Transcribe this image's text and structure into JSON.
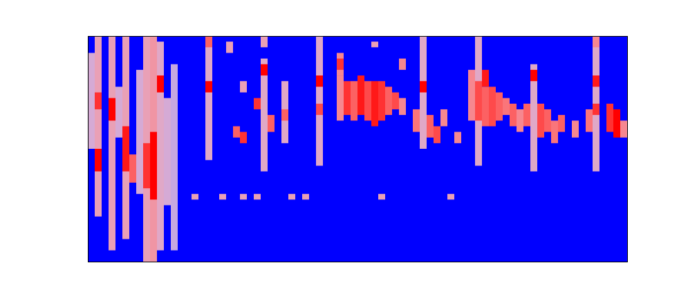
{
  "chart_data": {
    "type": "heatmap",
    "xlim": [
      0,
      78
    ],
    "ylim": [
      0,
      40
    ],
    "zlim": [
      0,
      1
    ],
    "tick_labels": false,
    "grid": false,
    "cells": [
      [
        1,
        8,
        39,
        0.6
      ],
      [
        0,
        20,
        36,
        0.5
      ],
      [
        1,
        16,
        19,
        1
      ],
      [
        1,
        27,
        29,
        0.9
      ],
      [
        3,
        2,
        39,
        0.6
      ],
      [
        3,
        25,
        28,
        1
      ],
      [
        5,
        4,
        39,
        0.6
      ],
      [
        5,
        16,
        23,
        0.95
      ],
      [
        4,
        22,
        30,
        0.5
      ],
      [
        7,
        12,
        33,
        0.5
      ],
      [
        6,
        14,
        18,
        0.8
      ],
      [
        8,
        0,
        39,
        0.6
      ],
      [
        9,
        0,
        39,
        0.65
      ],
      [
        9,
        11,
        22,
        1
      ],
      [
        8,
        13,
        20,
        0.9
      ],
      [
        10,
        2,
        38,
        0.55
      ],
      [
        10,
        30,
        32,
        1
      ],
      [
        12,
        2,
        34,
        0.45
      ],
      [
        11,
        10,
        28,
        0.5
      ],
      [
        17,
        18,
        39,
        0.55
      ],
      [
        17,
        30,
        31,
        1
      ],
      [
        17,
        38,
        39,
        0.8
      ],
      [
        15,
        11,
        11,
        0.6
      ],
      [
        19,
        11,
        11,
        0.6
      ],
      [
        22,
        11,
        11,
        0.6
      ],
      [
        24,
        11,
        11,
        0.6
      ],
      [
        29,
        11,
        11,
        0.6
      ],
      [
        31,
        11,
        11,
        0.6
      ],
      [
        42,
        11,
        11,
        0.6
      ],
      [
        52,
        11,
        11,
        0.6
      ],
      [
        20,
        37,
        38,
        0.6
      ],
      [
        21,
        22,
        23,
        0.8
      ],
      [
        22,
        21,
        22,
        0.9
      ],
      [
        22,
        30,
        31,
        0.6
      ],
      [
        25,
        16,
        35,
        0.55
      ],
      [
        25,
        33,
        34,
        1
      ],
      [
        24,
        27,
        28,
        0.9
      ],
      [
        26,
        23,
        25,
        0.8
      ],
      [
        25,
        38,
        39,
        0.6
      ],
      [
        28,
        21,
        31,
        0.55
      ],
      [
        28,
        25,
        26,
        0.8
      ],
      [
        33,
        17,
        39,
        0.55
      ],
      [
        33,
        31,
        32,
        1
      ],
      [
        33,
        26,
        27,
        0.85
      ],
      [
        36,
        33,
        36,
        0.7
      ],
      [
        36,
        34,
        35,
        0.9
      ],
      [
        36,
        25,
        32,
        0.7
      ],
      [
        37,
        26,
        31,
        0.9
      ],
      [
        38,
        25,
        31,
        0.8
      ],
      [
        39,
        26,
        32,
        0.95
      ],
      [
        40,
        25,
        31,
        0.85
      ],
      [
        41,
        24,
        31,
        0.95
      ],
      [
        42,
        25,
        31,
        0.9
      ],
      [
        43,
        26,
        30,
        0.8
      ],
      [
        44,
        27,
        29,
        0.85
      ],
      [
        45,
        26,
        28,
        0.7
      ],
      [
        41,
        38,
        38,
        0.6
      ],
      [
        45,
        34,
        35,
        0.7
      ],
      [
        48,
        20,
        39,
        0.55
      ],
      [
        48,
        30,
        31,
        1
      ],
      [
        47,
        23,
        26,
        0.75
      ],
      [
        49,
        22,
        25,
        0.8
      ],
      [
        50,
        21,
        23,
        0.85
      ],
      [
        51,
        24,
        26,
        0.7
      ],
      [
        53,
        21,
        22,
        0.7
      ],
      [
        56,
        17,
        39,
        0.55
      ],
      [
        57,
        31,
        33,
        0.95
      ],
      [
        55,
        25,
        33,
        0.7
      ],
      [
        56,
        25,
        31,
        0.85
      ],
      [
        57,
        24,
        30,
        0.8
      ],
      [
        58,
        24,
        30,
        0.85
      ],
      [
        59,
        25,
        29,
        0.8
      ],
      [
        60,
        26,
        28,
        0.75
      ],
      [
        61,
        24,
        27,
        0.8
      ],
      [
        62,
        23,
        26,
        0.7
      ],
      [
        64,
        16,
        34,
        0.55
      ],
      [
        64,
        32,
        33,
        1
      ],
      [
        63,
        24,
        27,
        0.8
      ],
      [
        65,
        22,
        27,
        0.85
      ],
      [
        66,
        23,
        26,
        0.8
      ],
      [
        67,
        21,
        24,
        0.75
      ],
      [
        68,
        23,
        25,
        0.8
      ],
      [
        70,
        22,
        24,
        0.7
      ],
      [
        72,
        23,
        26,
        0.75
      ],
      [
        73,
        16,
        39,
        0.55
      ],
      [
        73,
        31,
        32,
        0.95
      ],
      [
        73,
        26,
        27,
        0.9
      ],
      [
        73,
        38,
        39,
        0.7
      ],
      [
        75,
        23,
        27,
        0.9
      ],
      [
        76,
        22,
        26,
        1
      ],
      [
        77,
        22,
        24,
        0.7
      ]
    ]
  }
}
